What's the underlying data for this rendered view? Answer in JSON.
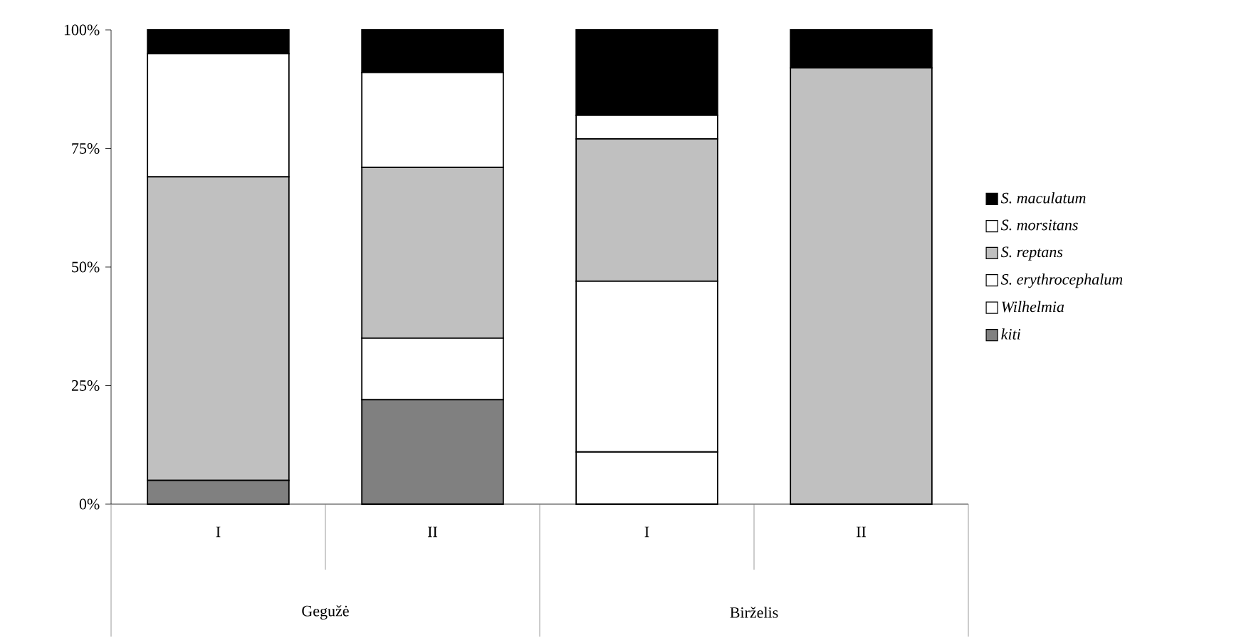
{
  "chart_data": {
    "type": "bar",
    "stacked": true,
    "legend": "right",
    "grid": false,
    "categories": [
      "I",
      "II",
      "I",
      "II"
    ],
    "series": [
      {
        "name": "kiti",
        "color": "#808080",
        "values": [
          5,
          22,
          0,
          0
        ]
      },
      {
        "name": "Wilhelmia",
        "color": "#ffffff",
        "values": [
          0,
          13,
          11,
          0
        ]
      },
      {
        "name": "S. erythrocephalum",
        "color": "#ffffff",
        "values": [
          0,
          0,
          36,
          0
        ]
      },
      {
        "name": "S. reptans",
        "color": "#c0c0c0",
        "values": [
          64,
          36,
          30,
          92
        ]
      },
      {
        "name": "S. morsitans",
        "color": "#ffffff",
        "values": [
          26,
          20,
          5,
          0
        ]
      },
      {
        "name": "S. maculatum",
        "color": "#000000",
        "values": [
          5,
          9,
          18,
          8
        ]
      }
    ],
    "ylim": [
      0,
      100
    ],
    "yticks": [
      {
        "value": 0,
        "label": "0%"
      },
      {
        "value": 25,
        "label": "25%"
      },
      {
        "value": 50,
        "label": "50%"
      },
      {
        "value": 75,
        "label": "75%"
      },
      {
        "value": 100,
        "label": "100%"
      }
    ],
    "annotations": [
      "Gegužė",
      "Birželis"
    ]
  }
}
